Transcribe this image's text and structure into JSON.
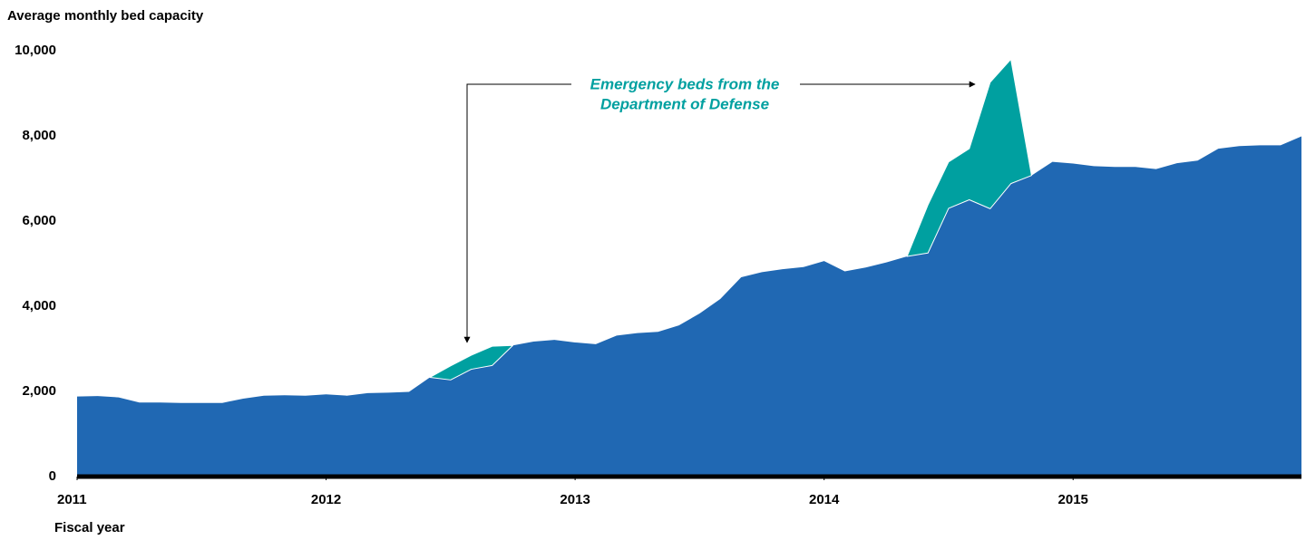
{
  "chart_data": {
    "type": "stacked-area",
    "y_label": "Average monthly bed capacity",
    "x_label": "Fiscal year",
    "annotation": [
      "Emergency beds from the",
      "Department of Defense"
    ],
    "annotation_color": "#00a0a0",
    "x": [
      2011,
      2011.083,
      2011.167,
      2011.25,
      2011.333,
      2011.417,
      2011.5,
      2011.583,
      2011.667,
      2011.75,
      2011.833,
      2011.917,
      2012,
      2012.083,
      2012.167,
      2012.25,
      2012.333,
      2012.417,
      2012.5,
      2012.583,
      2012.667,
      2012.75,
      2012.833,
      2012.917,
      2013,
      2013.083,
      2013.167,
      2013.25,
      2013.333,
      2013.417,
      2013.5,
      2013.583,
      2013.667,
      2013.75,
      2013.833,
      2013.917,
      2014,
      2014.083,
      2014.167,
      2014.25,
      2014.333,
      2014.417,
      2014.5,
      2014.583,
      2014.667,
      2014.75,
      2014.833,
      2014.917,
      2015,
      2015.083,
      2015.167,
      2015.25,
      2015.333,
      2015.417,
      2015.5,
      2015.583,
      2015.667,
      2015.75,
      2015.833,
      2015.917
    ],
    "series": [
      {
        "color": "#2068b3",
        "values": [
          1880,
          1890,
          1860,
          1740,
          1740,
          1730,
          1730,
          1730,
          1830,
          1900,
          1910,
          1900,
          1930,
          1900,
          1960,
          1970,
          1990,
          2330,
          2270,
          2520,
          2610,
          3080,
          3170,
          3210,
          3150,
          3110,
          3310,
          3370,
          3400,
          3550,
          3830,
          4170,
          4680,
          4800,
          4870,
          4920,
          5060,
          4820,
          4910,
          5030,
          5170,
          5250,
          6300,
          6500,
          6290,
          6880,
          7070,
          7390,
          7350,
          7290,
          7270,
          7270,
          7220,
          7360,
          7420,
          7700,
          7760,
          7780,
          7780,
          7990
        ]
      },
      {
        "color": "#00a0a0",
        "values": [
          null,
          null,
          null,
          null,
          null,
          null,
          null,
          null,
          null,
          null,
          null,
          null,
          null,
          null,
          null,
          null,
          null,
          0,
          330,
          330,
          450,
          0,
          null,
          null,
          null,
          null,
          null,
          null,
          null,
          null,
          null,
          null,
          null,
          null,
          null,
          null,
          null,
          null,
          null,
          null,
          0,
          1130,
          1090,
          1200,
          2970,
          2920,
          0,
          null,
          null,
          null,
          null,
          null,
          null,
          null,
          null,
          null,
          null,
          null,
          null,
          null
        ]
      }
    ],
    "xlim": [
      2011,
      2015.917
    ],
    "xticks": [
      2011,
      2012,
      2013,
      2014,
      2015
    ],
    "ylim": [
      0,
      10000
    ],
    "yticks": [
      0,
      {
        "value": 2000,
        "label": "2,000"
      },
      {
        "value": 4000,
        "label": "4,000"
      },
      {
        "value": 6000,
        "label": "6,000"
      },
      {
        "value": 8000,
        "label": "8,000"
      },
      {
        "value": 10000,
        "label": "10,000"
      }
    ]
  }
}
